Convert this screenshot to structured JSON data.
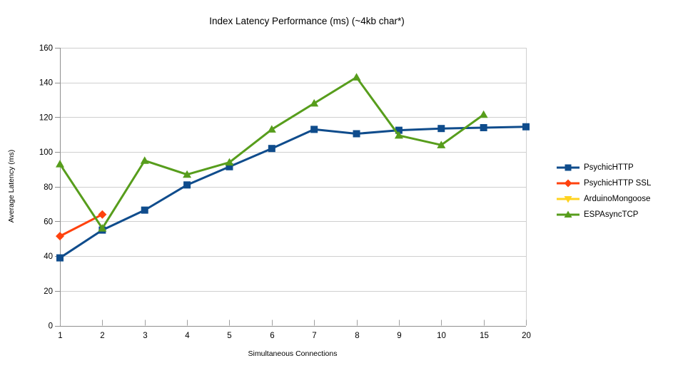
{
  "chart_data": {
    "type": "line",
    "title": "Index Latency Performance (ms) (~4kb char*)",
    "xlabel": "Simultaneous Connections",
    "ylabel": "Average Latency (ms)",
    "categories": [
      "1",
      "2",
      "3",
      "4",
      "5",
      "6",
      "7",
      "8",
      "9",
      "10",
      "15",
      "20"
    ],
    "ylim": [
      0,
      160
    ],
    "ytick_step": 20,
    "yticks": [
      "0",
      "20",
      "40",
      "60",
      "80",
      "100",
      "120",
      "140",
      "160"
    ],
    "grid": "horizontal",
    "legend_position": "right",
    "series": [
      {
        "name": "PsychicHTTP",
        "color": "#0F4C8C",
        "marker": "square",
        "values": [
          39,
          55,
          66.5,
          81,
          91.5,
          102,
          113,
          110.5,
          112.5,
          113.5,
          114,
          114.5
        ]
      },
      {
        "name": "PsychicHTTP SSL",
        "color": "#FF420E",
        "marker": "diamond",
        "values": [
          51.5,
          64,
          null,
          null,
          null,
          null,
          null,
          null,
          null,
          null,
          null,
          null
        ]
      },
      {
        "name": "ArduinoMongoose",
        "color": "#FFD320",
        "marker": "triangle-down",
        "values": [
          null,
          null,
          null,
          null,
          null,
          null,
          null,
          null,
          null,
          null,
          null,
          null
        ]
      },
      {
        "name": "ESPAsyncTCP",
        "color": "#579D1C",
        "marker": "triangle-up",
        "values": [
          93,
          56,
          95,
          87,
          94,
          113,
          128,
          143,
          109.5,
          104,
          121.5,
          null
        ]
      }
    ],
    "colors": {
      "background": "#FFFFFF",
      "grid": "#CFCFCF",
      "axis": "#8F8F8F",
      "tick": "#9F9F9F",
      "text": "#000000"
    }
  }
}
